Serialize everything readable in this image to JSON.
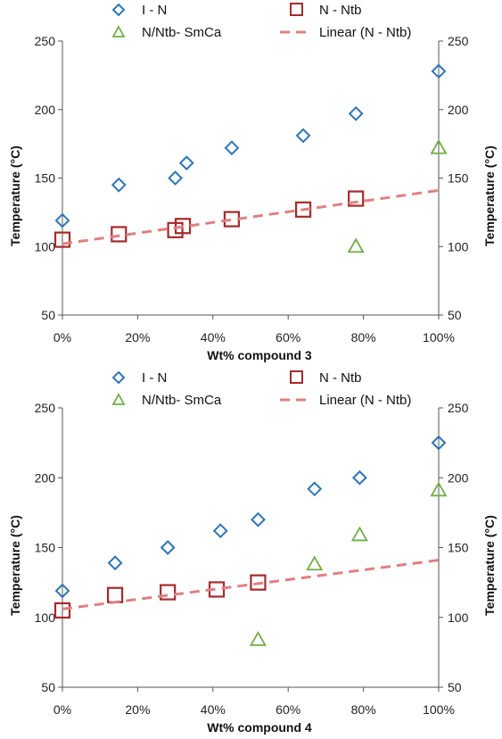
{
  "chart_data": [
    {
      "type": "scatter",
      "xlabel": "Wt% compound 3",
      "ylabel": "Temperature (°C)",
      "y2label": "Temperature (°C)",
      "xlim": [
        0,
        100
      ],
      "ylim": [
        50,
        250
      ],
      "xticks": [
        "0%",
        "20%",
        "40%",
        "60%",
        "80%",
        "100%"
      ],
      "yticks": [
        "50",
        "100",
        "150",
        "200",
        "250"
      ],
      "legend": [
        "I - N",
        "N - Ntb",
        "N/Ntb- SmCa",
        "Linear (N - Ntb)"
      ],
      "series": [
        {
          "name": "I - N",
          "marker": "diamond",
          "color": "#2e75b6",
          "x": [
            0,
            15,
            30,
            33,
            45,
            64,
            78,
            100
          ],
          "y": [
            119,
            145,
            150,
            161,
            172,
            181,
            197,
            228
          ]
        },
        {
          "name": "N - Ntb",
          "marker": "square",
          "color": "#a52a2a",
          "x": [
            0,
            15,
            30,
            32,
            45,
            64,
            78
          ],
          "y": [
            105,
            109,
            112,
            115,
            120,
            127,
            135
          ]
        },
        {
          "name": "N/Ntb- SmCa",
          "marker": "triangle",
          "color": "#70ad47",
          "x": [
            78,
            100
          ],
          "y": [
            100,
            172
          ]
        },
        {
          "name": "Linear (N - Ntb)",
          "marker": "dashed-line",
          "color": "#e08080",
          "x": [
            0,
            100
          ],
          "y": [
            102,
            141
          ]
        }
      ]
    },
    {
      "type": "scatter",
      "xlabel": "Wt% compound 4",
      "ylabel": "Temperature (°C)",
      "y2label": "Temperature (°C)",
      "xlim": [
        0,
        100
      ],
      "ylim": [
        50,
        250
      ],
      "xticks": [
        "0%",
        "20%",
        "40%",
        "60%",
        "80%",
        "100%"
      ],
      "yticks": [
        "50",
        "100",
        "150",
        "200",
        "250"
      ],
      "legend": [
        "I - N",
        "N - Ntb",
        "N/Ntb- SmCa",
        "Linear (N - Ntb)"
      ],
      "series": [
        {
          "name": "I - N",
          "marker": "diamond",
          "color": "#2e75b6",
          "x": [
            0,
            14,
            28,
            42,
            52,
            67,
            79,
            100
          ],
          "y": [
            119,
            139,
            150,
            162,
            170,
            192,
            200,
            225
          ]
        },
        {
          "name": "N - Ntb",
          "marker": "square",
          "color": "#a52a2a",
          "x": [
            0,
            14,
            28,
            41,
            52
          ],
          "y": [
            105,
            116,
            118,
            120,
            125
          ]
        },
        {
          "name": "N/Ntb- SmCa",
          "marker": "triangle",
          "color": "#70ad47",
          "x": [
            52,
            67,
            79,
            100
          ],
          "y": [
            84,
            138,
            159,
            191
          ]
        },
        {
          "name": "Linear (N - Ntb)",
          "marker": "dashed-line",
          "color": "#e08080",
          "x": [
            0,
            100
          ],
          "y": [
            106,
            141
          ]
        }
      ]
    }
  ]
}
